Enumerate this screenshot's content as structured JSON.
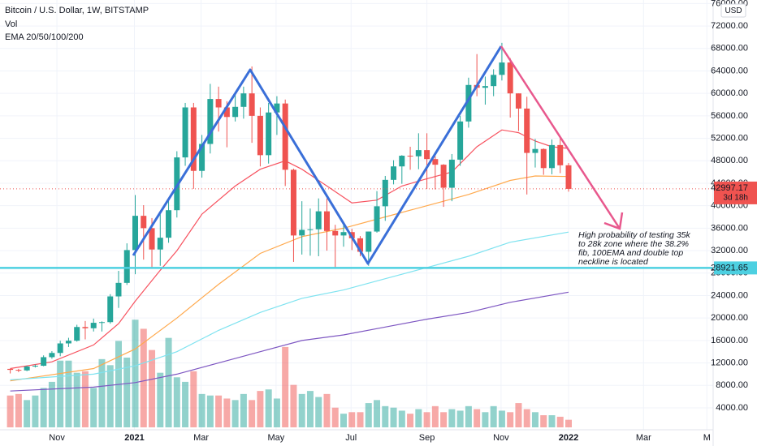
{
  "chart_data": {
    "type": "candlestick",
    "title": "Bitcoin / U.S. Dollar, 1W, BITSTAMP",
    "indicators": [
      "Vol",
      "EMA 20/50/100/200"
    ],
    "currency": "USD",
    "up_color": "#26a69a",
    "down_color": "#ef5350",
    "grid": true,
    "open": [
      10940,
      10770,
      10670,
      11370,
      11500,
      13030,
      13780,
      15480,
      15960,
      18400,
      18180,
      19150,
      19270,
      23850,
      26260,
      32100,
      38200,
      36000,
      32200,
      34300,
      39200,
      48600,
      57500,
      46200,
      51000,
      59000,
      57500,
      55800,
      57600,
      60000,
      56000,
      49000,
      56600,
      58200,
      46400,
      34700,
      35700,
      35800,
      39000,
      35500,
      34700,
      35300,
      34200,
      31800,
      35400,
      39900,
      44600,
      47000,
      48900,
      48800,
      49900,
      48300,
      47300,
      43200,
      48200,
      55000,
      61500,
      61000,
      61300,
      63300,
      65500,
      60000,
      57300,
      49400,
      50100,
      46700,
      50800,
      47200
    ],
    "high": [
      10990,
      10950,
      11500,
      11730,
      13350,
      14100,
      15960,
      16480,
      18800,
      19470,
      19900,
      19400,
      24250,
      28400,
      33300,
      41900,
      40100,
      37800,
      38500,
      40900,
      49700,
      58300,
      58300,
      52600,
      61700,
      61200,
      58600,
      60000,
      61200,
      64800,
      57500,
      58300,
      59500,
      58900,
      46600,
      40800,
      39500,
      41300,
      41300,
      36600,
      36600,
      35900,
      34600,
      35400,
      42600,
      45300,
      48100,
      49000,
      50500,
      52900,
      52900,
      48800,
      47400,
      49200,
      56000,
      62800,
      67000,
      63000,
      64300,
      69000,
      66300,
      60000,
      59400,
      51900,
      50200,
      51800,
      52100,
      47600
    ],
    "low": [
      10130,
      10370,
      10540,
      11190,
      11410,
      12750,
      13200,
      14840,
      15790,
      16200,
      17600,
      17600,
      19000,
      21800,
      25900,
      27800,
      30400,
      28900,
      29300,
      33400,
      37900,
      47100,
      43000,
      45000,
      49300,
      53200,
      50400,
      55000,
      55500,
      51200,
      47000,
      47500,
      52600,
      43500,
      30000,
      31300,
      31100,
      31000,
      32000,
      28800,
      32700,
      32100,
      31000,
      29300,
      35200,
      37300,
      43800,
      43900,
      46400,
      46500,
      43000,
      42900,
      39800,
      40800,
      47100,
      53900,
      59500,
      58000,
      59500,
      62300,
      55700,
      53300,
      42000,
      46800,
      45500,
      45600,
      45800,
      42500
    ],
    "close": [
      10770,
      10670,
      11370,
      11500,
      13030,
      13780,
      15480,
      15960,
      18400,
      18180,
      19150,
      19270,
      23850,
      26260,
      32100,
      38200,
      36000,
      32200,
      34300,
      39200,
      48600,
      57500,
      46200,
      51000,
      59000,
      57500,
      55800,
      57600,
      60000,
      56000,
      49000,
      56600,
      58200,
      46400,
      34700,
      35700,
      35800,
      39000,
      35500,
      34700,
      35300,
      34200,
      31800,
      35400,
      39900,
      44600,
      47000,
      48900,
      48800,
      49900,
      48300,
      47300,
      43200,
      48200,
      55000,
      61500,
      61000,
      61300,
      63300,
      65500,
      60000,
      57300,
      49400,
      50100,
      46700,
      50800,
      47200,
      42997.17
    ],
    "volume": {
      "ylim": [
        0,
        100
      ],
      "values": [
        21,
        22,
        18,
        21,
        26,
        30,
        44,
        44,
        36,
        37,
        26,
        45,
        41,
        57,
        46,
        71,
        65,
        51,
        36,
        59,
        33,
        30,
        37,
        22,
        21,
        21,
        19,
        18,
        22,
        18,
        24,
        25,
        19,
        53,
        28,
        22,
        24,
        20,
        22,
        13,
        9,
        10,
        10,
        16,
        18,
        14,
        13,
        11,
        9,
        12,
        10,
        14,
        10,
        12,
        11,
        14,
        12,
        10,
        14,
        11,
        10,
        16,
        12,
        10,
        8,
        8,
        7,
        5
      ]
    },
    "series": [
      {
        "color": "#f7525f",
        "x": [
          0,
          5,
          10,
          13,
          15,
          18,
          20,
          23,
          27,
          30,
          33,
          35,
          38,
          41,
          44,
          47,
          50,
          53,
          56,
          59,
          61,
          63,
          65,
          67
        ],
        "values": [
          11000,
          12200,
          15200,
          19000,
          23000,
          28500,
          32000,
          38500,
          43500,
          46500,
          48000,
          46500,
          43500,
          40500,
          41000,
          43500,
          44800,
          46000,
          50500,
          53500,
          53000,
          51500,
          50500,
          50200
        ]
      },
      {
        "color": "#ffa94d",
        "x": [
          0,
          10,
          15,
          20,
          25,
          30,
          35,
          40,
          45,
          50,
          55,
          60,
          63,
          67
        ],
        "values": [
          8800,
          11000,
          14500,
          20000,
          26000,
          31500,
          34500,
          36000,
          38000,
          40000,
          42000,
          44500,
          45300,
          45200
        ]
      },
      {
        "color": "#7fe3f0",
        "x": [
          0,
          10,
          15,
          20,
          25,
          30,
          35,
          40,
          45,
          50,
          55,
          60,
          67
        ],
        "values": [
          9000,
          10000,
          11500,
          14000,
          17800,
          21000,
          23500,
          25000,
          27000,
          29000,
          31000,
          33500,
          35300
        ]
      },
      {
        "color": "#7e57c2",
        "x": [
          0,
          10,
          15,
          20,
          25,
          30,
          35,
          40,
          45,
          50,
          55,
          60,
          67
        ],
        "values": [
          7000,
          7700,
          8500,
          10000,
          12000,
          14000,
          16000,
          17000,
          18400,
          19800,
          21000,
          22800,
          24600
        ]
      }
    ],
    "xlim": [
      -1.23,
      84.35
    ],
    "xticks": [
      {
        "value": 5.6,
        "label": "Nov"
      },
      {
        "value": 14.9,
        "label": "2021"
      },
      {
        "value": 22.9,
        "label": "Mar"
      },
      {
        "value": 31.9,
        "label": "May"
      },
      {
        "value": 40.9,
        "label": "Jul"
      },
      {
        "value": 50,
        "label": "Sep"
      },
      {
        "value": 58.9,
        "label": "Nov"
      },
      {
        "value": 67,
        "label": "2022"
      },
      {
        "value": 76,
        "label": "Mar"
      },
      {
        "value": 83.6,
        "label": "M"
      }
    ],
    "ylim": [
      100,
      76630
    ],
    "yticks": [
      {
        "value": 4000,
        "label": "4000.00"
      },
      {
        "value": 8000,
        "label": "8000.00"
      },
      {
        "value": 12000,
        "label": "12000.00"
      },
      {
        "value": 16000,
        "label": "16000.00"
      },
      {
        "value": 20000,
        "label": "20000.00"
      },
      {
        "value": 24000,
        "label": "24000.00"
      },
      {
        "value": 28000,
        "label": "28000.00"
      },
      {
        "value": 32000,
        "label": "32000.00"
      },
      {
        "value": 36000,
        "label": "36000.00"
      },
      {
        "value": 40000,
        "label": "40000.00"
      },
      {
        "value": 44000,
        "label": "44000.00"
      },
      {
        "value": 48000,
        "label": "48000.00"
      },
      {
        "value": 52000,
        "label": "52000.00"
      },
      {
        "value": 56000,
        "label": "56000.00"
      },
      {
        "value": 60000,
        "label": "60000.00"
      },
      {
        "value": 64000,
        "label": "64000.00"
      },
      {
        "value": 68000,
        "label": "68000.00"
      },
      {
        "value": 72000,
        "label": "72000.00"
      },
      {
        "value": 76000,
        "label": "76000.00"
      }
    ],
    "level": {
      "value": 28921.65,
      "color": "#4dd0e1"
    },
    "countdown": "3d 18h",
    "annotation": [
      "High probability of testing 35k",
      "to 28k zone where the 38.2%",
      "fib, 100EMA and double top",
      "neckline is located"
    ]
  }
}
